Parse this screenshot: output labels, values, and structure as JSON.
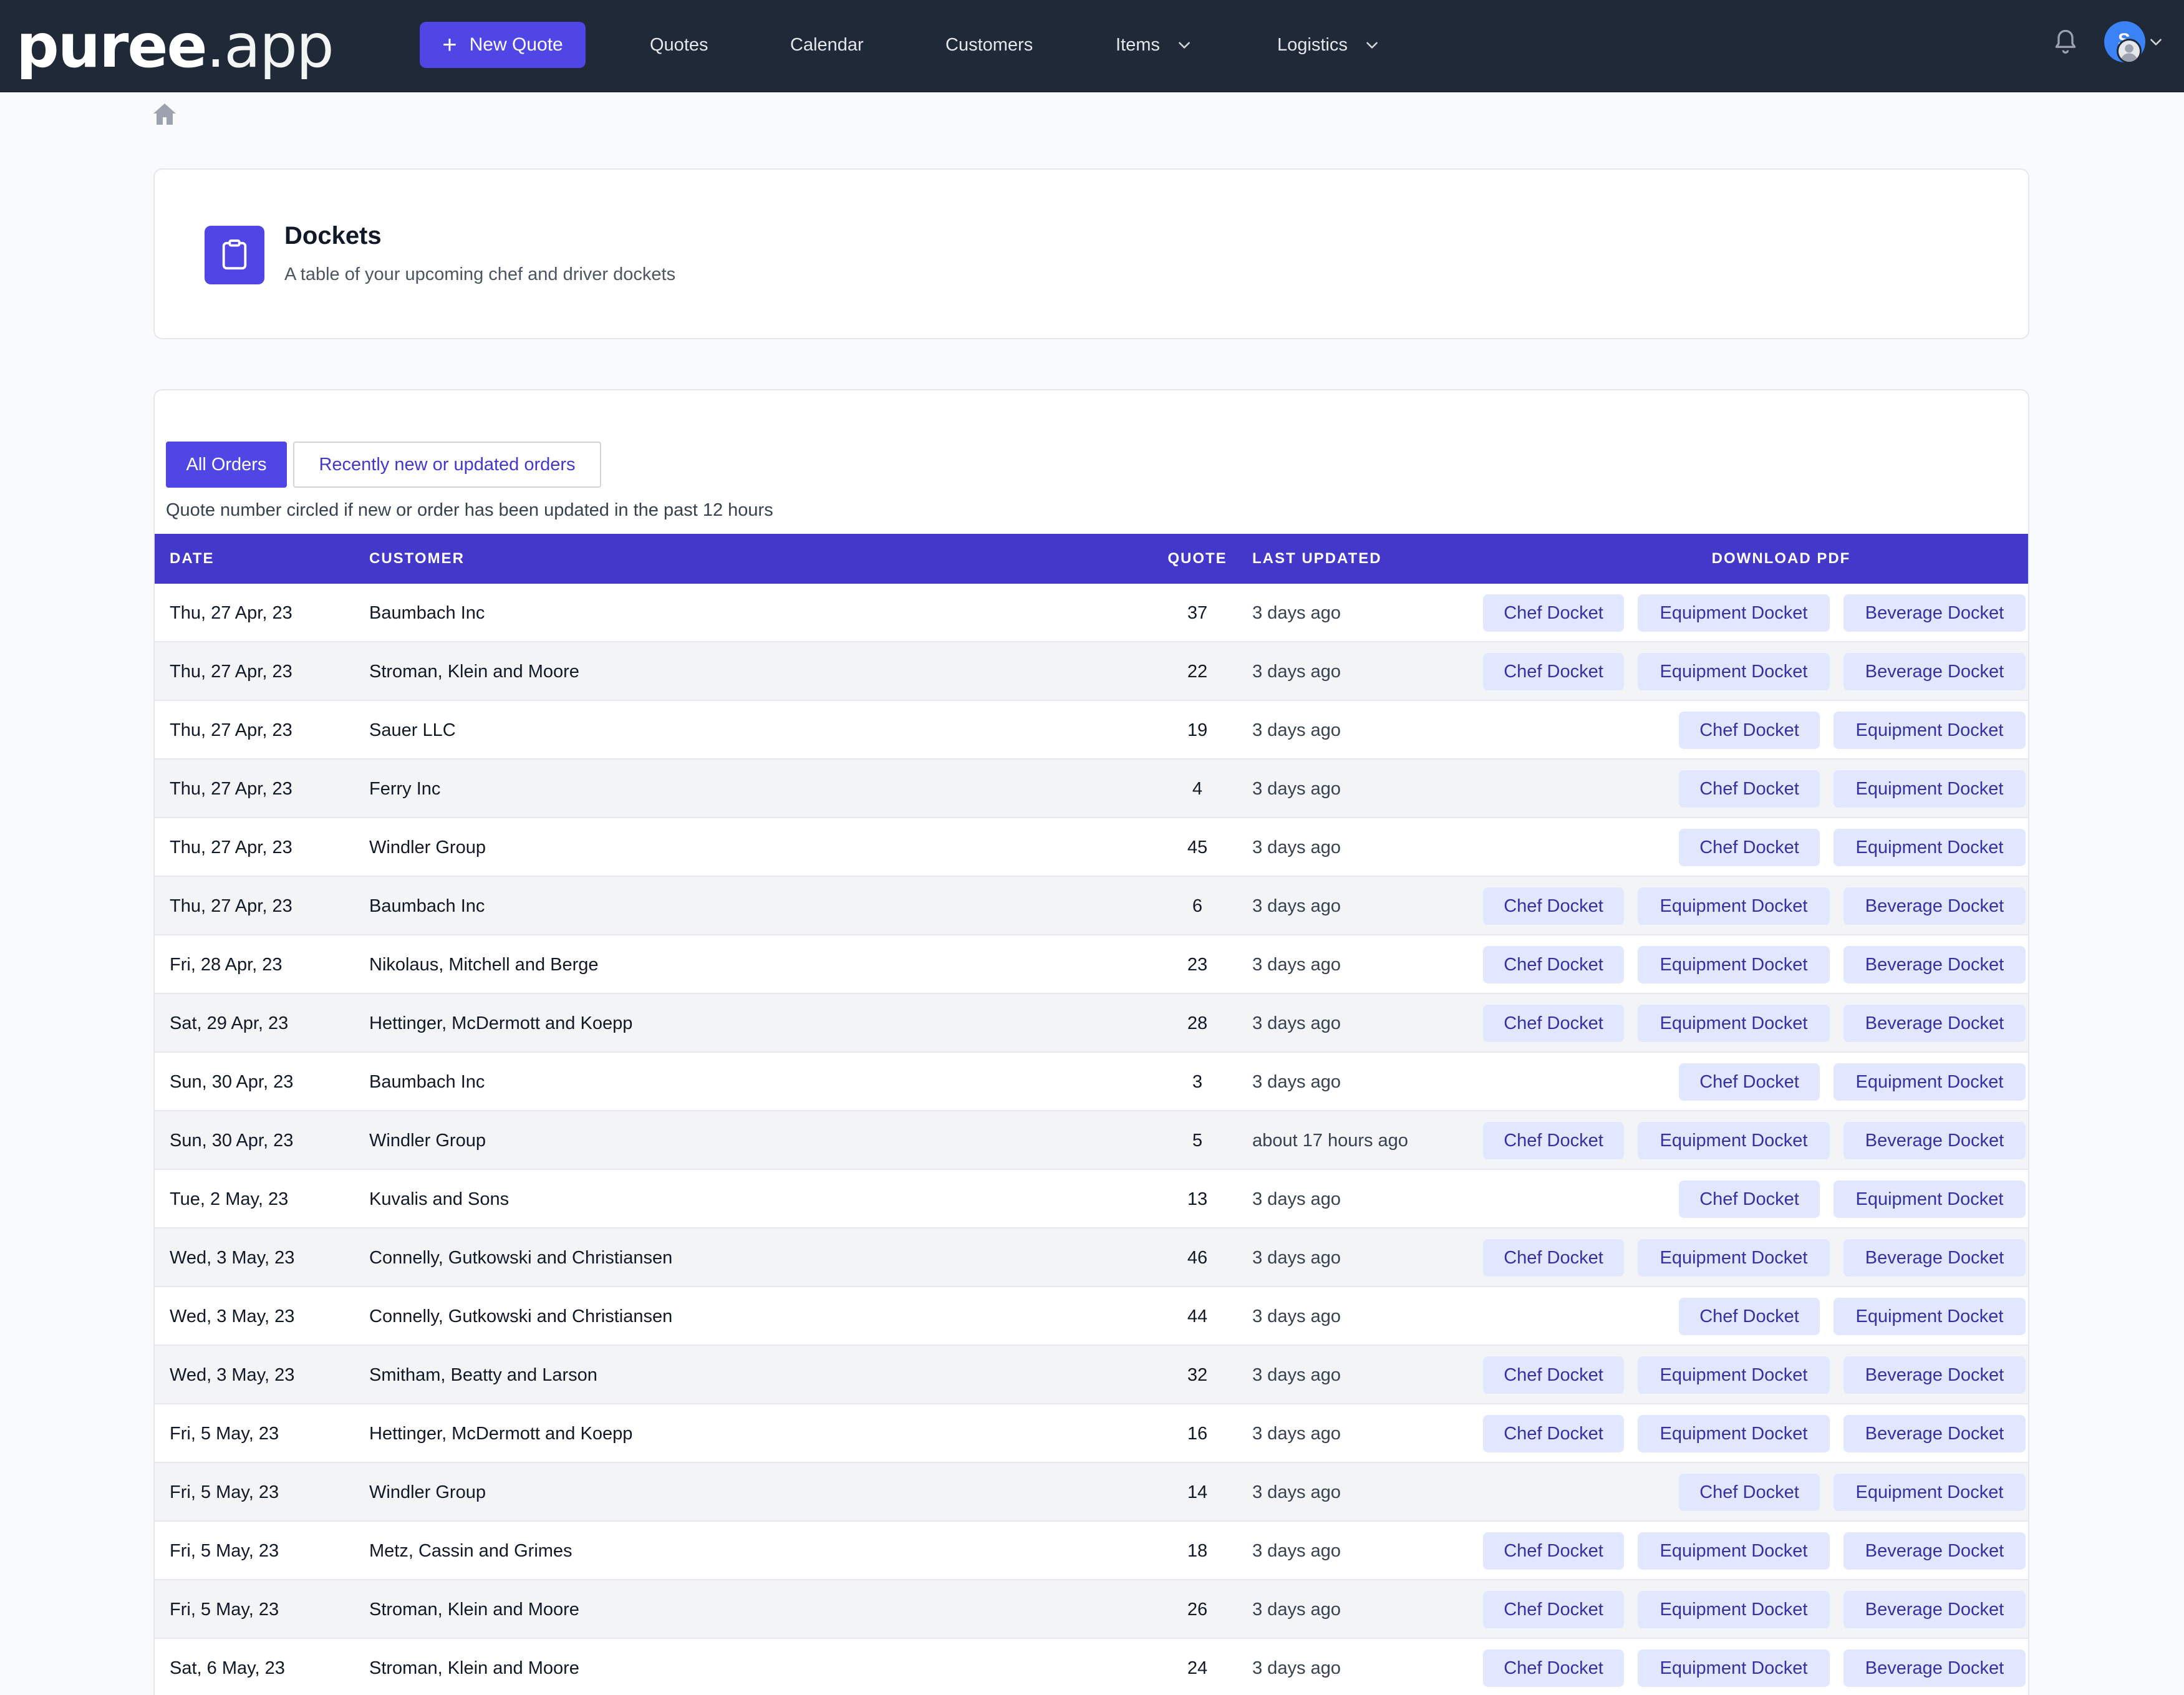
{
  "nav": {
    "logo_bold": "puree",
    "logo_thin": ".app",
    "new_quote": "New Quote",
    "links": [
      "Quotes",
      "Calendar",
      "Customers",
      "Items",
      "Logistics"
    ],
    "avatar_letter": "S"
  },
  "header": {
    "title": "Dockets",
    "subtitle": "A table of your upcoming chef and driver dockets"
  },
  "tabs": {
    "all": "All Orders",
    "recent": "Recently new or updated orders"
  },
  "table_note": "Quote number circled if new or order has been updated in the past 12 hours",
  "columns": {
    "date": "DATE",
    "customer": "CUSTOMER",
    "quote": "QUOTE",
    "last_updated": "LAST UPDATED",
    "download": "DOWNLOAD PDF"
  },
  "buttons": {
    "chef": "Chef Docket",
    "equipment": "Equipment Docket",
    "beverage": "Beverage Docket"
  },
  "rows": [
    {
      "date": "Thu, 27 Apr, 23",
      "customer": "Baumbach Inc",
      "quote": "37",
      "updated": "3 days ago",
      "beverage": true
    },
    {
      "date": "Thu, 27 Apr, 23",
      "customer": "Stroman, Klein and Moore",
      "quote": "22",
      "updated": "3 days ago",
      "beverage": true
    },
    {
      "date": "Thu, 27 Apr, 23",
      "customer": "Sauer LLC",
      "quote": "19",
      "updated": "3 days ago",
      "beverage": false
    },
    {
      "date": "Thu, 27 Apr, 23",
      "customer": "Ferry Inc",
      "quote": "4",
      "updated": "3 days ago",
      "beverage": false
    },
    {
      "date": "Thu, 27 Apr, 23",
      "customer": "Windler Group",
      "quote": "45",
      "updated": "3 days ago",
      "beverage": false
    },
    {
      "date": "Thu, 27 Apr, 23",
      "customer": "Baumbach Inc",
      "quote": "6",
      "updated": "3 days ago",
      "beverage": true
    },
    {
      "date": "Fri, 28 Apr, 23",
      "customer": "Nikolaus, Mitchell and Berge",
      "quote": "23",
      "updated": "3 days ago",
      "beverage": true
    },
    {
      "date": "Sat, 29 Apr, 23",
      "customer": "Hettinger, McDermott and Koepp",
      "quote": "28",
      "updated": "3 days ago",
      "beverage": true
    },
    {
      "date": "Sun, 30 Apr, 23",
      "customer": "Baumbach Inc",
      "quote": "3",
      "updated": "3 days ago",
      "beverage": false
    },
    {
      "date": "Sun, 30 Apr, 23",
      "customer": "Windler Group",
      "quote": "5",
      "updated": "about 17 hours ago",
      "beverage": true
    },
    {
      "date": "Tue, 2 May, 23",
      "customer": "Kuvalis and Sons",
      "quote": "13",
      "updated": "3 days ago",
      "beverage": false
    },
    {
      "date": "Wed, 3 May, 23",
      "customer": "Connelly, Gutkowski and Christiansen",
      "quote": "46",
      "updated": "3 days ago",
      "beverage": true
    },
    {
      "date": "Wed, 3 May, 23",
      "customer": "Connelly, Gutkowski and Christiansen",
      "quote": "44",
      "updated": "3 days ago",
      "beverage": false
    },
    {
      "date": "Wed, 3 May, 23",
      "customer": "Smitham, Beatty and Larson",
      "quote": "32",
      "updated": "3 days ago",
      "beverage": true
    },
    {
      "date": "Fri, 5 May, 23",
      "customer": "Hettinger, McDermott and Koepp",
      "quote": "16",
      "updated": "3 days ago",
      "beverage": true
    },
    {
      "date": "Fri, 5 May, 23",
      "customer": "Windler Group",
      "quote": "14",
      "updated": "3 days ago",
      "beverage": false
    },
    {
      "date": "Fri, 5 May, 23",
      "customer": "Metz, Cassin and Grimes",
      "quote": "18",
      "updated": "3 days ago",
      "beverage": true
    },
    {
      "date": "Fri, 5 May, 23",
      "customer": "Stroman, Klein and Moore",
      "quote": "26",
      "updated": "3 days ago",
      "beverage": true
    },
    {
      "date": "Sat, 6 May, 23",
      "customer": "Stroman, Klein and Moore",
      "quote": "24",
      "updated": "3 days ago",
      "beverage": true
    }
  ]
}
